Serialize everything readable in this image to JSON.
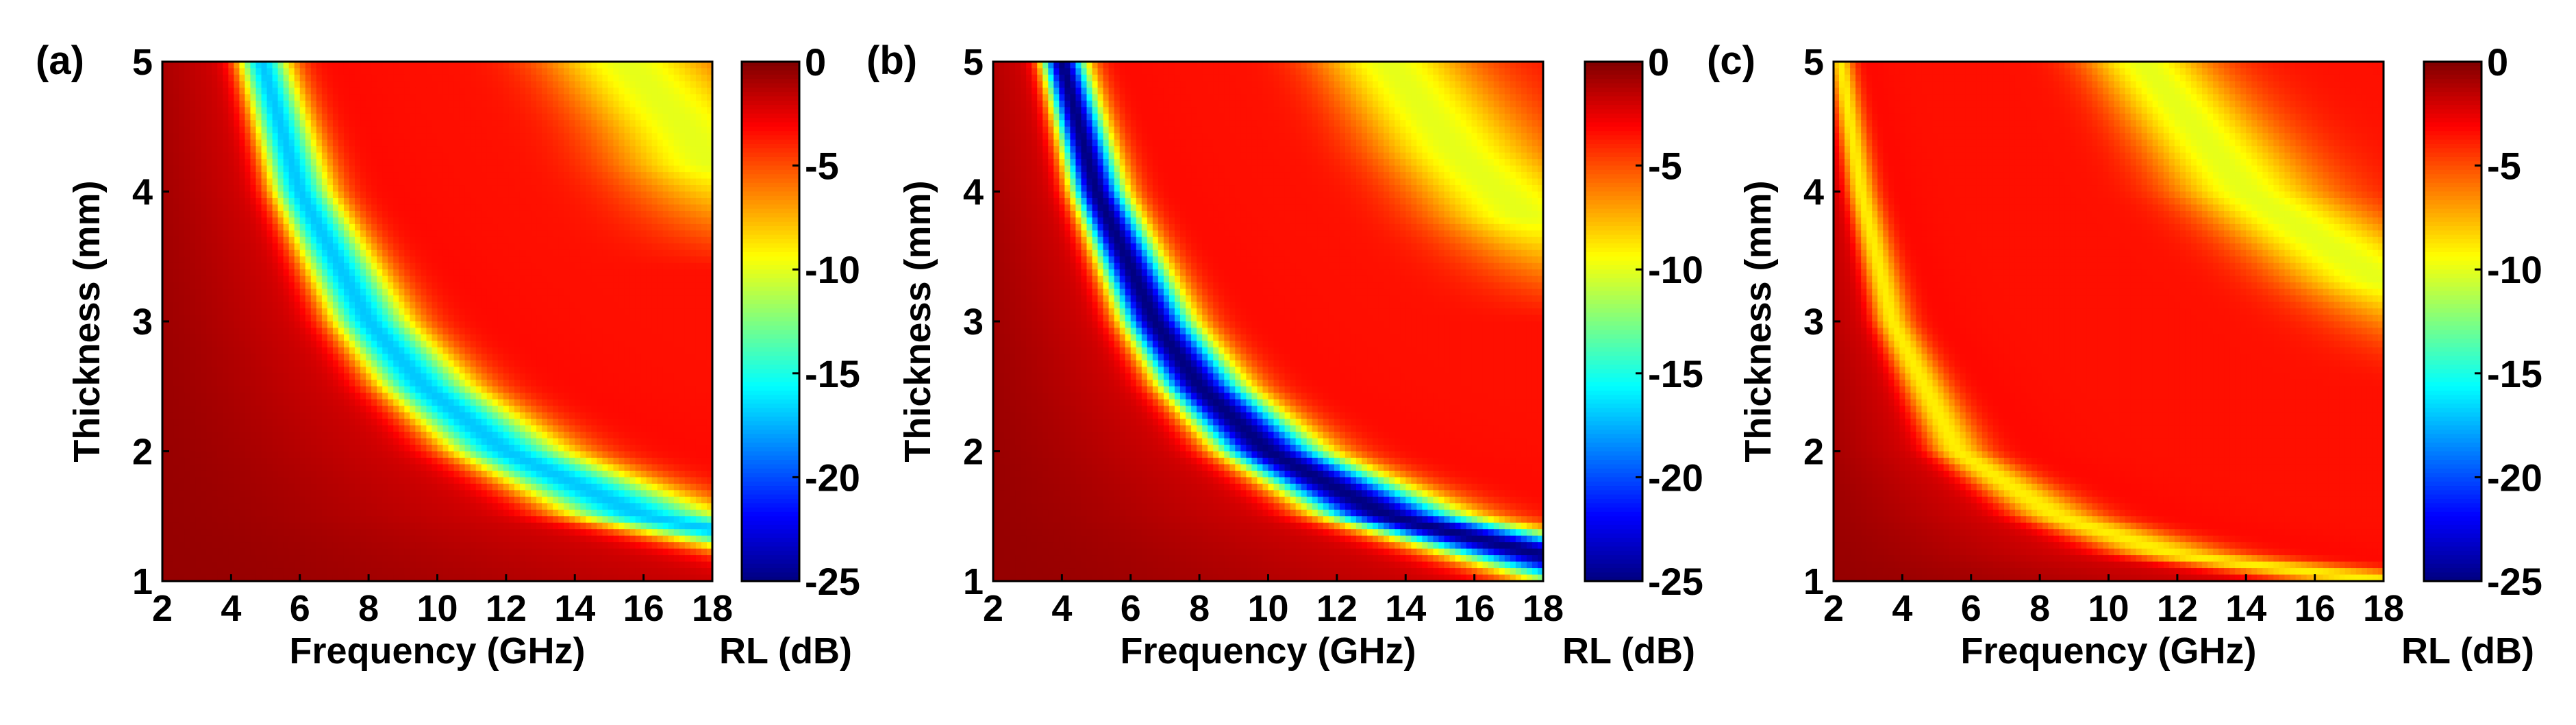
{
  "chart_data": [
    {
      "type": "heatmap",
      "panel_label": "(a)",
      "xlabel": "Frequency (GHz)",
      "ylabel": "Thickness (mm)",
      "colorbar_label": "RL (dB)",
      "xlim": [
        2,
        18
      ],
      "ylim": [
        1,
        5
      ],
      "clim": [
        -25,
        0
      ],
      "x_ticks": [
        2,
        4,
        6,
        8,
        10,
        12,
        14,
        16,
        18
      ],
      "y_ticks": [
        1,
        2,
        3,
        4,
        5
      ],
      "colorbar_ticks": [
        0,
        -5,
        -10,
        -15,
        -20,
        -25
      ],
      "colormap": "jet",
      "min_rl_db": -17,
      "absorption_band": [
        {
          "thickness_mm": 5.0,
          "frequency_ghz": 4.9
        },
        {
          "thickness_mm": 4.0,
          "frequency_ghz": 6.0
        },
        {
          "thickness_mm": 3.0,
          "frequency_ghz": 8.0
        },
        {
          "thickness_mm": 2.5,
          "frequency_ghz": 9.6
        },
        {
          "thickness_mm": 2.0,
          "frequency_ghz": 12.0
        },
        {
          "thickness_mm": 1.5,
          "frequency_ghz": 16.0
        },
        {
          "thickness_mm": 1.4,
          "frequency_ghz": 18.0
        }
      ],
      "second_band": [
        {
          "thickness_mm": 5.0,
          "frequency_ghz": 15.5
        },
        {
          "thickness_mm": 4.5,
          "frequency_ghz": 17.2
        },
        {
          "thickness_mm": 4.2,
          "frequency_ghz": 18.0
        }
      ]
    },
    {
      "type": "heatmap",
      "panel_label": "(b)",
      "xlabel": "Frequency (GHz)",
      "ylabel": "Thickness (mm)",
      "colorbar_label": "RL (dB)",
      "xlim": [
        2,
        18
      ],
      "ylim": [
        1,
        5
      ],
      "clim": [
        -25,
        0
      ],
      "x_ticks": [
        2,
        4,
        6,
        8,
        10,
        12,
        14,
        16,
        18
      ],
      "y_ticks": [
        1,
        2,
        3,
        4,
        5
      ],
      "colorbar_ticks": [
        0,
        -5,
        -10,
        -15,
        -20,
        -25
      ],
      "colormap": "jet",
      "min_rl_db": -25,
      "absorption_band": [
        {
          "thickness_mm": 5.0,
          "frequency_ghz": 4.0
        },
        {
          "thickness_mm": 4.0,
          "frequency_ghz": 5.0
        },
        {
          "thickness_mm": 3.0,
          "frequency_ghz": 6.7
        },
        {
          "thickness_mm": 2.5,
          "frequency_ghz": 8.0
        },
        {
          "thickness_mm": 2.0,
          "frequency_ghz": 10.0
        },
        {
          "thickness_mm": 1.5,
          "frequency_ghz": 13.5
        },
        {
          "thickness_mm": 1.2,
          "frequency_ghz": 18.0
        }
      ],
      "second_band": [
        {
          "thickness_mm": 5.0,
          "frequency_ghz": 13.5
        },
        {
          "thickness_mm": 4.3,
          "frequency_ghz": 15.5
        },
        {
          "thickness_mm": 3.8,
          "frequency_ghz": 17.5
        }
      ]
    },
    {
      "type": "heatmap",
      "panel_label": "(c)",
      "xlabel": "Frequency (GHz)",
      "ylabel": "Thickness (mm)",
      "colorbar_label": "RL (dB)",
      "xlim": [
        2,
        18
      ],
      "ylim": [
        1,
        5
      ],
      "clim": [
        -25,
        0
      ],
      "x_ticks": [
        2,
        4,
        6,
        8,
        10,
        12,
        14,
        16,
        18
      ],
      "y_ticks": [
        1,
        2,
        3,
        4,
        5
      ],
      "colorbar_ticks": [
        0,
        -5,
        -10,
        -15,
        -20,
        -25
      ],
      "colormap": "jet",
      "min_rl_db": -9,
      "absorption_band": [
        {
          "thickness_mm": 5.0,
          "frequency_ghz": 2.2
        },
        {
          "thickness_mm": 4.0,
          "frequency_ghz": 2.8
        },
        {
          "thickness_mm": 3.0,
          "frequency_ghz": 3.7
        },
        {
          "thickness_mm": 2.0,
          "frequency_ghz": 5.6
        },
        {
          "thickness_mm": 1.5,
          "frequency_ghz": 8.5
        },
        {
          "thickness_mm": 1.2,
          "frequency_ghz": 12.0
        },
        {
          "thickness_mm": 1.0,
          "frequency_ghz": 18.0
        }
      ],
      "second_band": [
        {
          "thickness_mm": 5.0,
          "frequency_ghz": 11.0
        },
        {
          "thickness_mm": 4.0,
          "frequency_ghz": 14.0
        },
        {
          "thickness_mm": 3.3,
          "frequency_ghz": 18.0
        }
      ]
    }
  ]
}
